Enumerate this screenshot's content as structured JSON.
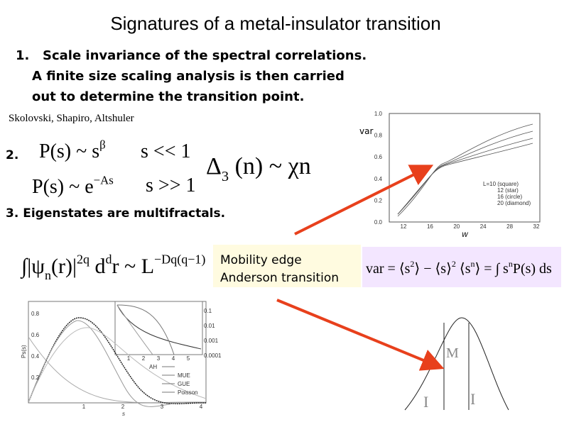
{
  "title": "Signatures of a metal-insulator transition",
  "item1": {
    "number": "1.",
    "lines": [
      "Scale invariance of the spectral correlations.",
      "A finite size scaling analysis is then carried",
      "out to determine the transition point."
    ]
  },
  "authors": "Skolovski, Shapiro, Altshuler",
  "item2": {
    "number": "2.",
    "small_s": [
      "P(s) ~ s",
      {
        "sup": "β"
      }
    ],
    "large_s": [
      "P(s) ~ e",
      {
        "sup": "−As"
      }
    ],
    "small_s_condition": "s << 1",
    "large_s_condition": "s >> 1",
    "delta3": [
      "Δ",
      {
        "sub": "3"
      },
      " (n) ~ χn"
    ]
  },
  "item3": "3. Eigenstates are multifractals.",
  "multifractal": [
    "∫|ψ",
    {
      "sub": "n"
    },
    "(r)|",
    {
      "sup": "2q"
    },
    " d",
    {
      "sup": "d"
    },
    "r ~ L",
    {
      "sup": "−Dq(q−1)"
    }
  ],
  "mobility_box": [
    "Mobility edge",
    "Anderson transition"
  ],
  "var_formula": [
    "var = ⟨s",
    {
      "sup": "2"
    },
    "⟩ − ⟨s⟩",
    {
      "sup": "2"
    },
    "   ⟨s",
    {
      "sup": "n"
    },
    "⟩ = ∫ s",
    {
      "sup": "n"
    },
    "P(s) ds"
  ],
  "var_plot": {
    "ylabel": "var",
    "xlabel": "W",
    "yticks": [
      "1.0",
      "0.8",
      "0.6",
      "0.4",
      "0.2",
      "0.0"
    ],
    "xticks": [
      "12",
      "16",
      "20",
      "24",
      "28",
      "32"
    ],
    "legend": [
      "L=10 (square)",
      "12 (star)",
      "16 (circle)",
      "20 (diamond)"
    ]
  },
  "ps_plot": {
    "ylabel": "Ps(s)",
    "xlabel": "s",
    "yticks": [
      "0.8",
      "0.6",
      "0.4",
      "0.2"
    ],
    "xticks": [
      "1",
      "2",
      "3",
      "4"
    ],
    "inset_yticks": [
      "0.1",
      "0.01",
      "0.001",
      "0.0001"
    ],
    "inset_xticks": [
      "1",
      "2",
      "3",
      "4",
      "5"
    ],
    "legend": [
      "AH",
      "MUE",
      "GUE",
      "Poisson"
    ]
  },
  "mobility_diagram": {
    "labels": [
      "M",
      "I",
      "I"
    ]
  }
}
